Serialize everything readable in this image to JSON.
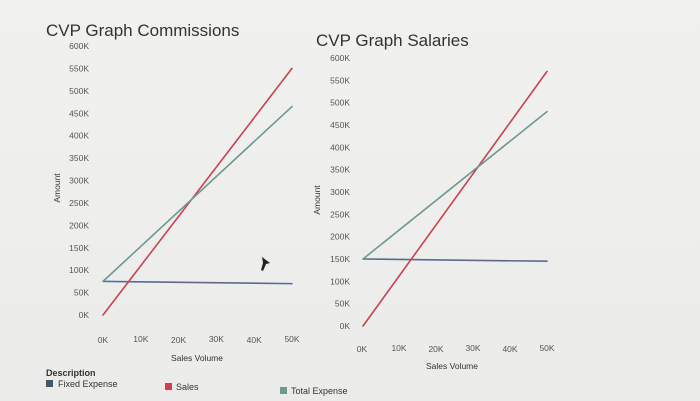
{
  "chart_data": [
    {
      "type": "line",
      "title": "CVP Graph Commissions",
      "xlabel": "Sales Volume",
      "ylabel": "Amount",
      "x_ticks": [
        "0K",
        "10K",
        "20K",
        "30K",
        "40K",
        "50K"
      ],
      "y_ticks": [
        "0K",
        "50K",
        "100K",
        "150K",
        "200K",
        "250K",
        "300K",
        "350K",
        "400K",
        "450K",
        "500K",
        "550K",
        "600K"
      ],
      "xlim": [
        0,
        50000
      ],
      "ylim": [
        0,
        600000
      ],
      "x": [
        0,
        50000
      ],
      "series": [
        {
          "name": "Fixed Expense",
          "color": "#5a6b8c",
          "values": [
            75000,
            70000
          ]
        },
        {
          "name": "Sales",
          "color": "#c9424f",
          "values": [
            0,
            550000
          ]
        },
        {
          "name": "Total Expense",
          "color": "#6e9a8e",
          "values": [
            75000,
            465000
          ]
        }
      ],
      "grid": false
    },
    {
      "type": "line",
      "title": "CVP Graph Salaries",
      "xlabel": "Sales Volume",
      "ylabel": "Amount",
      "x_ticks": [
        "0K",
        "10K",
        "20K",
        "30K",
        "40K",
        "50K"
      ],
      "y_ticks": [
        "0K",
        "50K",
        "100K",
        "150K",
        "200K",
        "250K",
        "300K",
        "350K",
        "400K",
        "450K",
        "500K",
        "550K",
        "600K"
      ],
      "xlim": [
        0,
        50000
      ],
      "ylim": [
        0,
        600000
      ],
      "x": [
        0,
        50000
      ],
      "series": [
        {
          "name": "Fixed Expense",
          "color": "#5a6b8c",
          "values": [
            150000,
            145000
          ]
        },
        {
          "name": "Sales",
          "color": "#c9424f",
          "values": [
            0,
            570000
          ]
        },
        {
          "name": "Total Expense",
          "color": "#6e9a8e",
          "values": [
            150000,
            480000
          ]
        }
      ],
      "grid": false
    }
  ],
  "legend": {
    "title": "Description",
    "items": [
      {
        "label": "Fixed Expense",
        "color": "#3f5675"
      },
      {
        "label": "Sales",
        "color": "#c9424f"
      },
      {
        "label": "Total Expense",
        "color": "#6e9a8e"
      }
    ]
  }
}
